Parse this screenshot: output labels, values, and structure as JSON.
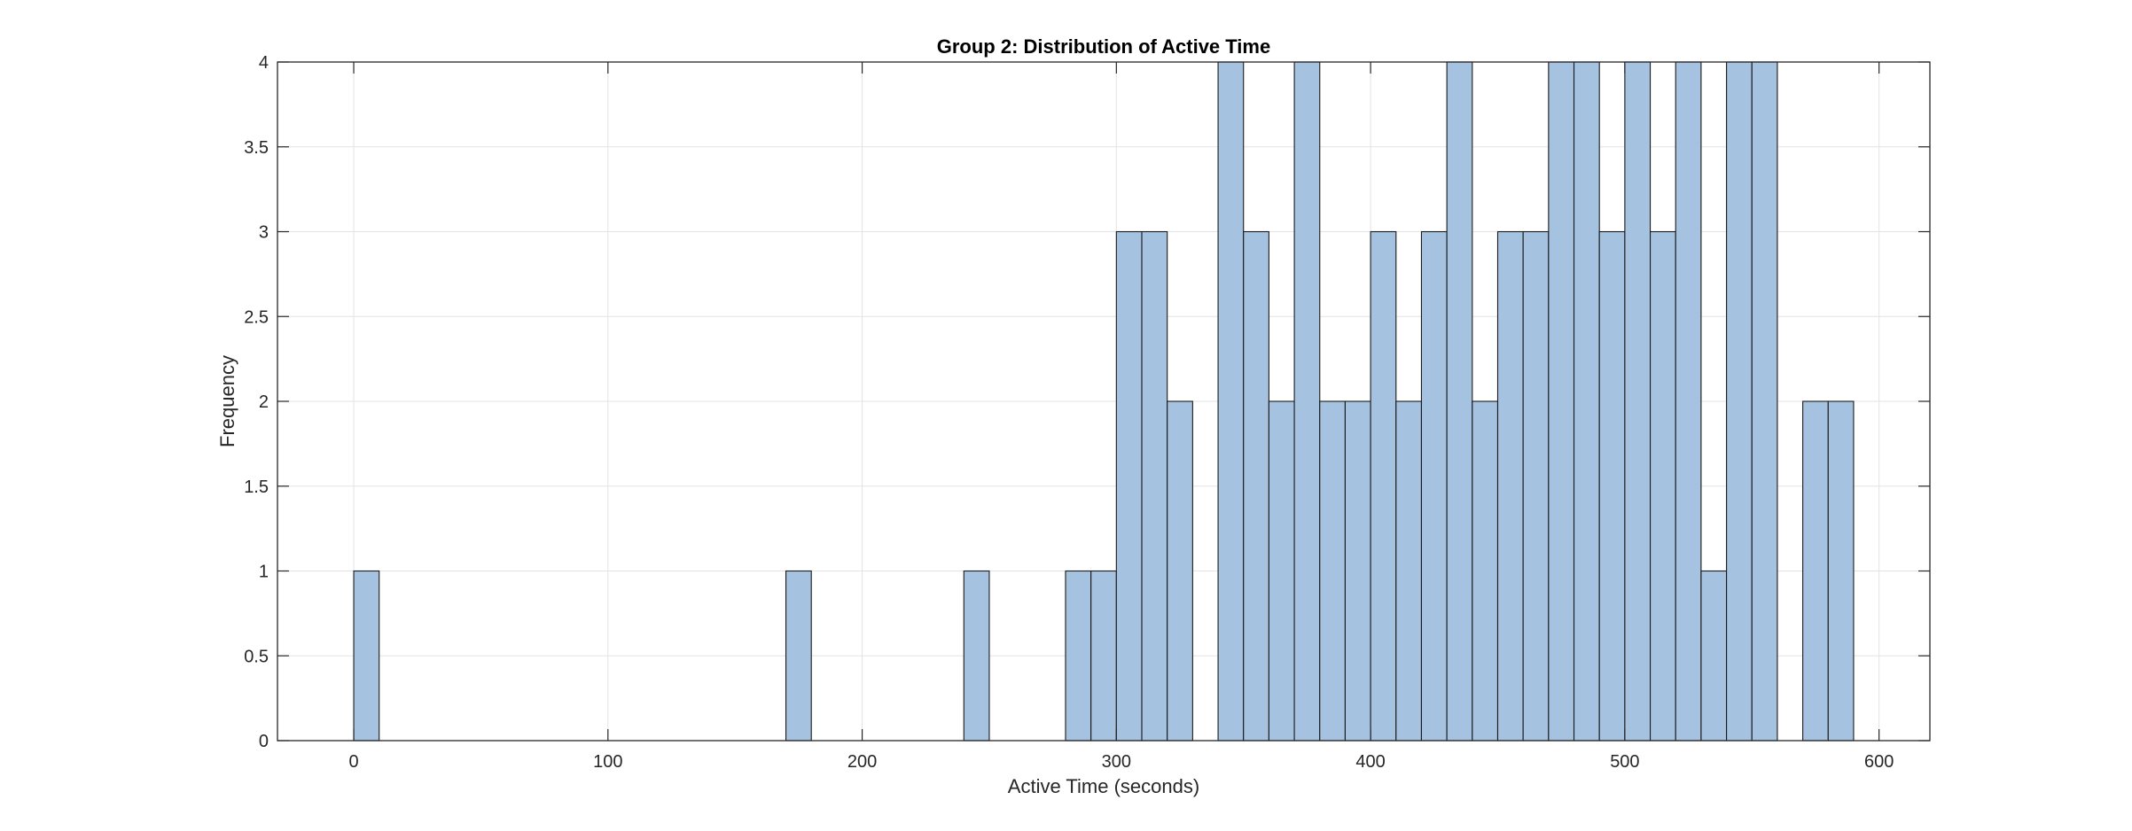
{
  "chart_data": {
    "type": "bar",
    "title": "Group 2: Distribution of Active Time",
    "xlabel": "Active Time (seconds)",
    "ylabel": "Frequency",
    "xlim": [
      -30,
      620
    ],
    "ylim": [
      0,
      4
    ],
    "xticks": [
      0,
      100,
      200,
      300,
      400,
      500,
      600
    ],
    "yticks": [
      0,
      0.5,
      1,
      1.5,
      2,
      2.5,
      3,
      3.5,
      4
    ],
    "ytick_labels": [
      "0",
      "0.5",
      "1",
      "1.5",
      "2",
      "2.5",
      "3",
      "3.5",
      "4"
    ],
    "bin_width": 10,
    "grid": true,
    "bar_color": "#a5c2e0",
    "edge_color": "#1a1a1a",
    "bins": [
      {
        "start": 0,
        "count": 1
      },
      {
        "start": 170,
        "count": 1
      },
      {
        "start": 240,
        "count": 1
      },
      {
        "start": 280,
        "count": 1
      },
      {
        "start": 290,
        "count": 1
      },
      {
        "start": 300,
        "count": 3
      },
      {
        "start": 310,
        "count": 3
      },
      {
        "start": 320,
        "count": 2
      },
      {
        "start": 340,
        "count": 4
      },
      {
        "start": 350,
        "count": 3
      },
      {
        "start": 360,
        "count": 2
      },
      {
        "start": 370,
        "count": 4
      },
      {
        "start": 380,
        "count": 2
      },
      {
        "start": 390,
        "count": 2
      },
      {
        "start": 400,
        "count": 3
      },
      {
        "start": 410,
        "count": 2
      },
      {
        "start": 420,
        "count": 3
      },
      {
        "start": 430,
        "count": 4
      },
      {
        "start": 440,
        "count": 2
      },
      {
        "start": 450,
        "count": 3
      },
      {
        "start": 460,
        "count": 3
      },
      {
        "start": 470,
        "count": 4
      },
      {
        "start": 480,
        "count": 4
      },
      {
        "start": 490,
        "count": 3
      },
      {
        "start": 500,
        "count": 4
      },
      {
        "start": 510,
        "count": 3
      },
      {
        "start": 520,
        "count": 4
      },
      {
        "start": 530,
        "count": 1
      },
      {
        "start": 540,
        "count": 4
      },
      {
        "start": 550,
        "count": 4
      },
      {
        "start": 570,
        "count": 2
      },
      {
        "start": 580,
        "count": 2
      }
    ]
  }
}
